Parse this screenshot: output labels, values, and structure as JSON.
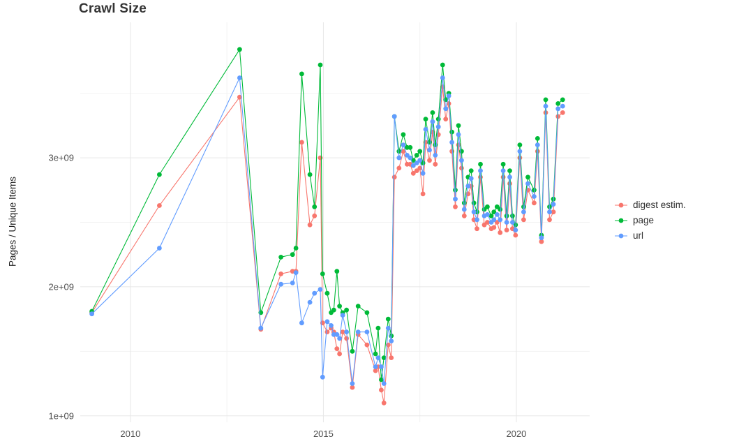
{
  "title": "Crawl Size",
  "chart_data": {
    "type": "line",
    "title": "Crawl Size",
    "xlabel": "",
    "ylabel": "Pages / Unique Items",
    "y_unit": "1e9",
    "grid": true,
    "legend_position": "right",
    "xlim": [
      2008.7,
      2021.9
    ],
    "ylim": [
      0.95,
      4.05
    ],
    "xticks": [
      {
        "value": 2010,
        "label": "2010"
      },
      {
        "value": 2015,
        "label": "2015"
      },
      {
        "value": 2020,
        "label": "2020"
      }
    ],
    "xticks_minor": [
      2012.5,
      2017.5
    ],
    "yticks": [
      {
        "value": 1,
        "label": "1e+09"
      },
      {
        "value": 2,
        "label": "2e+09"
      },
      {
        "value": 3,
        "label": "3e+09"
      }
    ],
    "yticks_minor": [
      1.5,
      2.5,
      3.5
    ],
    "x": [
      2009.0,
      2010.75,
      2012.83,
      2013.38,
      2013.9,
      2014.2,
      2014.29,
      2014.44,
      2014.65,
      2014.77,
      2014.92,
      2014.98,
      2015.1,
      2015.2,
      2015.27,
      2015.35,
      2015.42,
      2015.5,
      2015.6,
      2015.75,
      2015.9,
      2016.13,
      2016.35,
      2016.42,
      2016.5,
      2016.57,
      2016.68,
      2016.76,
      2016.84,
      2016.96,
      2017.07,
      2017.17,
      2017.25,
      2017.33,
      2017.42,
      2017.5,
      2017.58,
      2017.65,
      2017.75,
      2017.83,
      2017.9,
      2017.98,
      2018.09,
      2018.17,
      2018.25,
      2018.33,
      2018.42,
      2018.5,
      2018.58,
      2018.65,
      2018.75,
      2018.83,
      2018.9,
      2018.98,
      2019.07,
      2019.17,
      2019.25,
      2019.35,
      2019.42,
      2019.5,
      2019.58,
      2019.66,
      2019.75,
      2019.83,
      2019.9,
      2019.98,
      2020.09,
      2020.19,
      2020.3,
      2020.46,
      2020.55,
      2020.65,
      2020.76,
      2020.86,
      2020.96,
      2021.08,
      2021.2
    ],
    "series": [
      {
        "name": "digest estim.",
        "color": "#F8766D",
        "values": [
          1.8,
          2.63,
          3.47,
          1.67,
          2.1,
          2.12,
          2.12,
          3.12,
          2.48,
          2.55,
          3.0,
          1.72,
          1.65,
          1.68,
          1.65,
          1.52,
          1.48,
          1.65,
          1.6,
          1.22,
          1.63,
          1.55,
          1.35,
          1.38,
          1.2,
          1.1,
          1.55,
          1.45,
          2.85,
          2.92,
          3.05,
          2.95,
          2.95,
          2.88,
          2.9,
          2.92,
          2.72,
          3.12,
          2.98,
          3.2,
          2.95,
          3.18,
          3.55,
          3.3,
          3.42,
          3.05,
          2.62,
          3.1,
          2.92,
          2.55,
          2.72,
          2.78,
          2.52,
          2.45,
          2.85,
          2.48,
          2.5,
          2.45,
          2.46,
          2.5,
          2.42,
          2.85,
          2.44,
          2.8,
          2.45,
          2.4,
          3.0,
          2.52,
          2.75,
          2.65,
          3.05,
          2.35,
          3.35,
          2.52,
          2.58,
          3.32,
          3.35
        ]
      },
      {
        "name": "page",
        "color": "#00BA38",
        "values": [
          1.81,
          2.87,
          3.84,
          1.8,
          2.23,
          2.25,
          2.3,
          3.65,
          2.87,
          2.62,
          3.72,
          2.1,
          1.95,
          1.8,
          1.82,
          2.12,
          1.85,
          1.8,
          1.82,
          1.5,
          1.85,
          1.8,
          1.48,
          1.68,
          1.28,
          1.45,
          1.75,
          1.62,
          3.32,
          3.05,
          3.18,
          3.08,
          3.08,
          2.98,
          3.02,
          3.05,
          2.96,
          3.3,
          3.12,
          3.35,
          3.1,
          3.3,
          3.72,
          3.45,
          3.5,
          3.2,
          2.75,
          3.25,
          3.05,
          2.65,
          2.85,
          2.9,
          2.65,
          2.58,
          2.95,
          2.6,
          2.62,
          2.55,
          2.58,
          2.62,
          2.6,
          2.95,
          2.55,
          2.9,
          2.55,
          2.48,
          3.1,
          2.62,
          2.85,
          2.75,
          3.15,
          2.4,
          3.45,
          2.62,
          2.68,
          3.42,
          3.45
        ]
      },
      {
        "name": "url",
        "color": "#619CFF",
        "values": [
          1.79,
          2.3,
          3.62,
          1.68,
          2.02,
          2.03,
          2.11,
          1.72,
          1.88,
          1.95,
          1.98,
          1.3,
          1.73,
          1.7,
          1.63,
          1.63,
          1.6,
          1.78,
          1.65,
          1.25,
          1.65,
          1.65,
          1.38,
          1.45,
          1.38,
          1.25,
          1.68,
          1.58,
          3.32,
          3.0,
          3.1,
          3.02,
          3.0,
          2.94,
          2.96,
          2.98,
          2.88,
          3.22,
          3.06,
          3.28,
          3.02,
          3.24,
          3.62,
          3.38,
          3.48,
          3.12,
          2.68,
          3.18,
          2.98,
          2.6,
          2.78,
          2.84,
          2.58,
          2.52,
          2.9,
          2.55,
          2.56,
          2.5,
          2.52,
          2.56,
          2.52,
          2.9,
          2.5,
          2.85,
          2.5,
          2.44,
          3.05,
          2.58,
          2.8,
          2.7,
          3.1,
          2.38,
          3.4,
          2.58,
          2.64,
          3.38,
          3.4
        ]
      }
    ]
  },
  "colors": {
    "grid_major": "#e7e7e7",
    "grid_minor": "#f2f2f2",
    "tick_text": "#4d4d4d"
  }
}
